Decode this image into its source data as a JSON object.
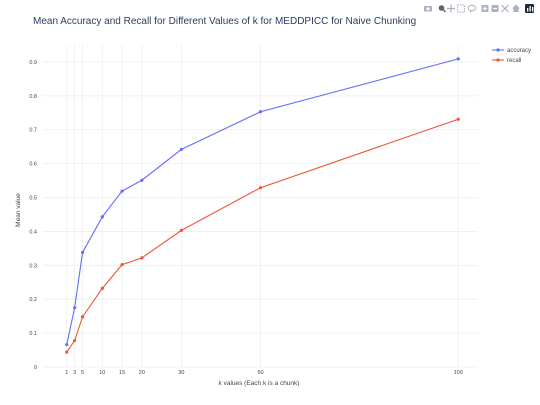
{
  "chart_data": {
    "type": "line",
    "title": "Mean Accuracy and Recall for Different Values of k for MEDDPICC for Naive Chunking",
    "xlabel": "k values (Each k is a chunk)",
    "ylabel": "Mean value",
    "x": [
      1,
      3,
      5,
      10,
      15,
      20,
      30,
      50,
      100
    ],
    "xticks": [
      "1",
      "3",
      "5",
      "10",
      "15",
      "20",
      "30",
      "50",
      "100"
    ],
    "yticks": [
      "0",
      "0.1",
      "0.2",
      "0.3",
      "0.4",
      "0.5",
      "0.6",
      "0.7",
      "0.8",
      "0.9"
    ],
    "xlim": [
      -5,
      105
    ],
    "ylim": [
      0,
      0.95
    ],
    "grid": true,
    "legend_position": "top-right",
    "series": [
      {
        "name": "accuracy",
        "color": "#636efa",
        "values": [
          0.066,
          0.175,
          0.338,
          0.443,
          0.519,
          0.551,
          0.642,
          0.753,
          0.909
        ]
      },
      {
        "name": "recall",
        "color": "#ef553b",
        "values": [
          0.044,
          0.078,
          0.148,
          0.232,
          0.302,
          0.322,
          0.403,
          0.529,
          0.731
        ]
      }
    ]
  },
  "toolbar": {
    "icons": [
      "camera-icon",
      "zoom-icon",
      "pan-icon",
      "box-select-icon",
      "lasso-icon",
      "zoom-in-icon",
      "zoom-out-icon",
      "autoscale-icon",
      "reset-axes-icon",
      "plotly-logo-icon"
    ]
  }
}
